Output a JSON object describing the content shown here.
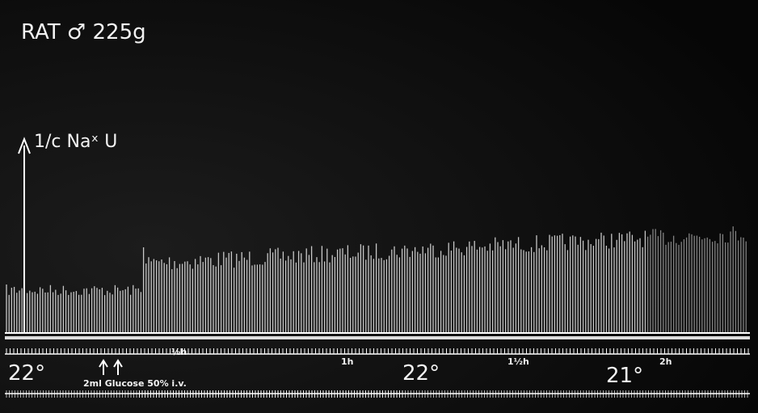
{
  "header": {
    "title": "RAT ♂ 225g"
  },
  "scale": {
    "label": "1/c Naˣ U"
  },
  "time_marks": [
    "½h",
    "1h",
    "1½h",
    "2h"
  ],
  "temperatures": [
    "22°",
    "22°",
    "21°"
  ],
  "injection": {
    "label": "2ml Glucose 50% i.v."
  }
}
